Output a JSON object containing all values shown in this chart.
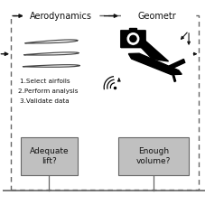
{
  "bg_color": "#ffffff",
  "border_color": "#666666",
  "box_fill_color": "#c0c0c0",
  "arrow_color": "#111111",
  "text_color": "#111111",
  "title_aero": "Aerodynamics",
  "title_geom": "Geometr",
  "label1": "1.Select airfoils",
  "label2": "2.Perform analysis",
  "label3": "3.Validate data",
  "box1_text": "Adequate\nlift?",
  "box2_text": "Enough\nvolume?",
  "fig_width": 2.27,
  "fig_height": 2.27,
  "dpi": 100
}
